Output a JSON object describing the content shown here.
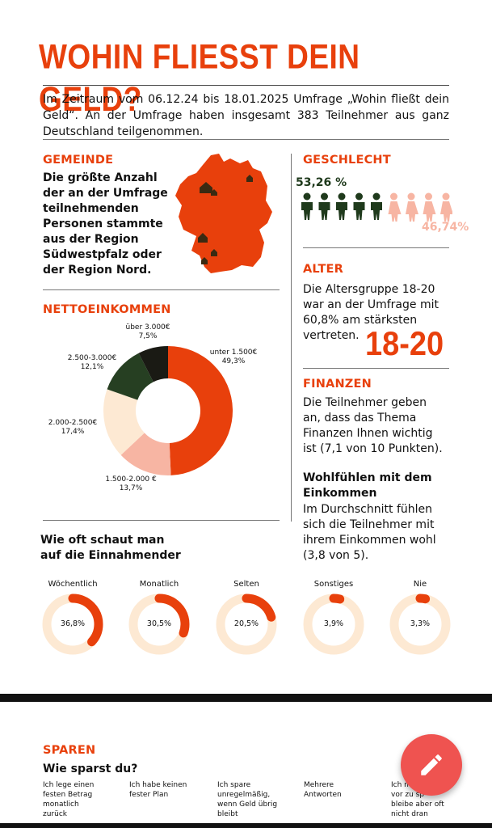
{
  "title": "WOHIN FLIESST DEIN GELD?",
  "intro": "Im Zeitraum vom 06.12.24 bis 18.01.2025 Umfrage „Wohin fließt dein Geld“. An der Umfrage haben insgesamt 383 Teilnehmer aus ganz Deutschland teilgenommen.",
  "gemeinde": {
    "heading": "GEMEINDE",
    "lines": [
      "Die größte Anzahl",
      "der an der Umfrage",
      "teilnehmenden",
      "Personen stammte",
      "aus der Region",
      "Südwestpfalz oder",
      "der Region Nord."
    ]
  },
  "geschlecht": {
    "heading": "GESCHLECHT",
    "male_pct": "53,26 %",
    "female_pct": "46,74%",
    "male_count": 5,
    "female_count": 4,
    "male_color": "#1f3a1c",
    "female_color": "#f7b5a3"
  },
  "alter": {
    "heading": "ALTER",
    "lines": [
      "Die Altersgruppe 18-20",
      "war an der Umfrage mit",
      "60,8% am stärksten",
      "vertreten."
    ],
    "big": "18-20"
  },
  "netto": {
    "heading": "NETTOEINKOMMEN"
  },
  "finanzen": {
    "heading": "FINANZEN",
    "lines": [
      "Die Teilnehmer geben",
      "an, dass das Thema",
      "Finanzen Ihnen wichtig",
      "ist (7,1 von 10 Punkten)."
    ],
    "wohl_heading": [
      "Wohlfühlen mit dem",
      "Einkommen"
    ],
    "wohl_lines": [
      "Im Durchschnitt fühlen",
      "sich die Teilnehmer mit",
      "ihrem Einkommen wohl",
      "(3,8 von 5)."
    ]
  },
  "frequency": {
    "heading": [
      "Wie oft schaut man",
      "auf die Einnahmender"
    ],
    "items": [
      {
        "label": "Wöchentlich",
        "value": "36,8%",
        "fraction": 0.368
      },
      {
        "label": "Monatlich",
        "value": "30,5%",
        "fraction": 0.305
      },
      {
        "label": "Selten",
        "value": "20,5%",
        "fraction": 0.205
      },
      {
        "label": "Sonstiges",
        "value": "3,9%",
        "fraction": 0.039
      },
      {
        "label": "Nie",
        "value": "3,3%",
        "fraction": 0.033
      }
    ]
  },
  "sparen": {
    "heading": "SPAREN",
    "question": "Wie sparst du?",
    "options": [
      [
        "Ich lege einen",
        "festen Betrag",
        "monatlich",
        "zurück"
      ],
      [
        "Ich habe keinen",
        "fester Plan"
      ],
      [
        "Ich spare",
        "unregelmäßig,",
        "wenn Geld übrig",
        "bleibt"
      ],
      [
        "Mehrere",
        "Antworten"
      ],
      [
        "Ich n",
        "vor zu sp",
        "bleibe aber oft",
        "nicht dran"
      ]
    ]
  },
  "chart_data": {
    "type": "pie",
    "title": "NETTOEINKOMMEN",
    "categories": [
      "unter 1.500€",
      "1.500-2.000 €",
      "2.000-2.500€",
      "2.500-3.000€",
      "über 3.000€"
    ],
    "value_labels": [
      "49,3%",
      "13,7%",
      "17,4%",
      "12,1%",
      "7,5%"
    ],
    "values": [
      49.3,
      13.7,
      17.4,
      12.1,
      7.5
    ],
    "colors": [
      "#e8400c",
      "#f7b5a3",
      "#fde9d3",
      "#263f22",
      "#1a1a14"
    ]
  },
  "colors": {
    "accent": "#e8400c",
    "ring_track": "#fde9d3"
  },
  "icons": {
    "fab": "pencil-icon"
  }
}
